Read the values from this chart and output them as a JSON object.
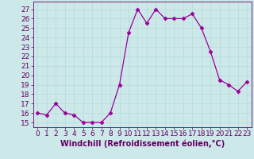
{
  "x": [
    0,
    1,
    2,
    3,
    4,
    5,
    6,
    7,
    8,
    9,
    10,
    11,
    12,
    13,
    14,
    15,
    16,
    17,
    18,
    19,
    20,
    21,
    22,
    23
  ],
  "y": [
    16,
    15.8,
    17,
    16,
    15.8,
    15,
    15,
    15,
    16,
    19,
    24.5,
    27,
    25.5,
    27,
    26,
    26,
    26,
    26.5,
    25,
    22.5,
    19.5,
    19,
    18.3,
    19.3
  ],
  "line_color": "#990099",
  "marker": "D",
  "marker_size": 2.5,
  "bg_color": "#cce8e8",
  "grid_color": "#bbdddd",
  "xlabel": "Windchill (Refroidissement éolien,°C)",
  "xlabel_fontsize": 7,
  "tick_fontsize": 6.5,
  "ylim": [
    14.5,
    27.8
  ],
  "xlim": [
    -0.5,
    23.5
  ],
  "yticks": [
    15,
    16,
    17,
    18,
    19,
    20,
    21,
    22,
    23,
    24,
    25,
    26,
    27
  ],
  "xticks": [
    0,
    1,
    2,
    3,
    4,
    5,
    6,
    7,
    8,
    9,
    10,
    11,
    12,
    13,
    14,
    15,
    16,
    17,
    18,
    19,
    20,
    21,
    22,
    23
  ],
  "tick_color": "#660066",
  "spine_color": "#660066",
  "label_color": "#660066"
}
